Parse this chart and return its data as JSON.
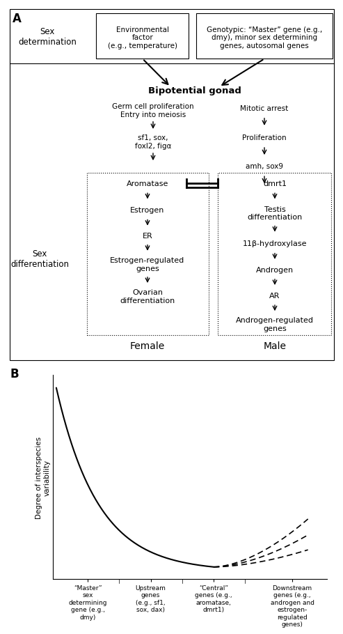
{
  "bg_color": "#ffffff",
  "text_color": "#000000",
  "panel_A_label": "A",
  "panel_B_label": "B",
  "sex_det_label": "Sex\ndetermination",
  "env_box_text": "Environmental\nfactor\n(e.g., temperature)",
  "gen_box_text": "Genotypic: “Master” gene (e.g.,\ndmy), minor sex determining\ngenes, autosomal genes",
  "bipotential": "Bipotential gonad",
  "germ_cell": "Germ cell proliferation\nEntry into meiosis",
  "sf1_sox": "sf1, sox,\nfoxl2, figα",
  "mitotic_arrest": "Mitotic arrest",
  "proliferation": "Proliferation",
  "amh_sox9": "amh, sox9",
  "sex_diff_label": "Sex\ndifferentiation",
  "aromatase": "Aromatase",
  "estrogen": "Estrogen",
  "ER": "ER",
  "estrogen_reg": "Estrogen-regulated\ngenes",
  "ovarian_diff": "Ovarian\ndifferentiation",
  "dmrt1": "dmrt1",
  "testis_diff": "Testis\ndifferentiation",
  "hydroxylase": "11β-hydroxylase",
  "androgen": "Androgen",
  "AR": "AR",
  "androgen_reg": "Androgen-regulated\ngenes",
  "female_label": "Female",
  "male_label": "Male",
  "ylabel_B": "Degree of interspecies\nvariability",
  "x_labels": [
    "“Master”\nsex\ndetermining\ngene (e.g.,\ndmy)",
    "Upstream\ngenes\n(e.g., sf1,\nsox, dax)",
    "“Central”\ngenes (e.g.,\naromatase,\ndmrt1)",
    "Downstream\ngenes (e.g.,\nandrogen and\nestrogen-\nregulated\ngenes)"
  ]
}
